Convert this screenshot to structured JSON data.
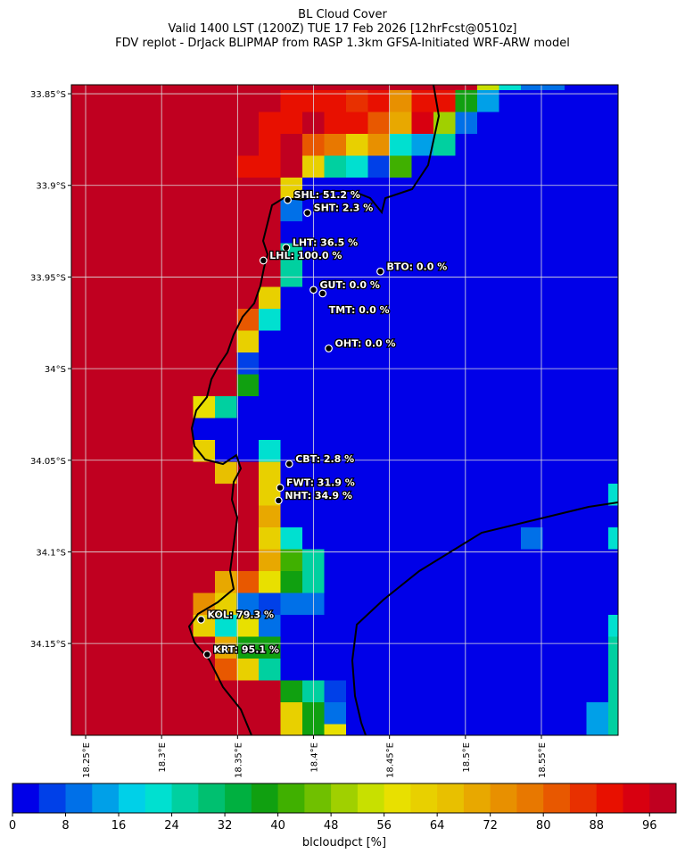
{
  "title_lines": [
    "BL Cloud Cover",
    "Valid 1400 LST (1200Z) TUE 17 Feb 2026 [12hrFcst@0510z]",
    "FDV replot - DrJack BLIPMAP from RASP 1.3km GFSA-Initiated WRF-ARW model"
  ],
  "map": {
    "xlim": [
      18.2406,
      18.6005
    ],
    "ylim": [
      -34.2001,
      -33.8451
    ],
    "xticks": [
      {
        "value": 18.25,
        "label": "18.25°E"
      },
      {
        "value": 18.3,
        "label": "18.3°E"
      },
      {
        "value": 18.35,
        "label": "18.35°E"
      },
      {
        "value": 18.4,
        "label": "18.4°E"
      },
      {
        "value": 18.45,
        "label": "18.45°E"
      },
      {
        "value": 18.5,
        "label": "18.5°E"
      },
      {
        "value": 18.55,
        "label": "18.55°E"
      }
    ],
    "yticks": [
      {
        "value": -33.85,
        "label": "33.85°S"
      },
      {
        "value": -33.9,
        "label": "33.9°S"
      },
      {
        "value": -33.95,
        "label": "33.95°S"
      },
      {
        "value": -34.0,
        "label": "34°S"
      },
      {
        "value": -34.05,
        "label": "34.05°S"
      },
      {
        "value": -34.1,
        "label": "34.1°S"
      },
      {
        "value": -34.15,
        "label": "34.15°S"
      }
    ],
    "grid": true,
    "cloud_grid": [
      [
        100,
        100,
        100,
        100,
        100,
        100,
        100,
        100,
        100,
        100,
        100,
        100,
        100,
        100,
        100,
        100,
        100,
        100,
        100,
        52,
        20,
        8,
        10,
        0,
        0,
        0
      ],
      [
        100,
        100,
        100,
        100,
        100,
        100,
        100,
        100,
        100,
        100,
        90,
        90,
        90,
        84,
        90,
        74,
        90,
        90,
        36,
        12,
        0,
        0,
        0,
        0,
        0,
        0
      ],
      [
        100,
        100,
        100,
        100,
        100,
        100,
        100,
        100,
        100,
        90,
        90,
        96,
        90,
        90,
        82,
        70,
        92,
        50,
        8,
        0,
        0,
        0,
        0,
        0,
        0,
        0
      ],
      [
        100,
        100,
        100,
        100,
        100,
        100,
        100,
        100,
        100,
        90,
        96,
        82,
        76,
        60,
        72,
        20,
        14,
        26,
        0,
        0,
        0,
        0,
        0,
        0,
        0,
        0
      ],
      [
        100,
        100,
        100,
        100,
        100,
        100,
        100,
        100,
        90,
        90,
        98,
        60,
        24,
        20,
        6,
        42,
        0,
        0,
        0,
        0,
        0,
        0,
        0,
        0,
        0,
        0
      ],
      [
        100,
        100,
        100,
        100,
        100,
        100,
        100,
        100,
        100,
        100,
        60,
        0,
        0,
        0,
        0,
        0,
        0,
        0,
        0,
        0,
        0,
        0,
        0,
        0,
        0,
        0
      ],
      [
        100,
        100,
        100,
        100,
        100,
        100,
        100,
        100,
        100,
        100,
        10,
        0,
        0,
        0,
        0,
        0,
        0,
        0,
        0,
        0,
        0,
        0,
        0,
        0,
        0,
        0
      ],
      [
        100,
        100,
        100,
        100,
        100,
        100,
        100,
        100,
        100,
        100,
        0,
        0,
        0,
        0,
        0,
        0,
        0,
        0,
        0,
        0,
        0,
        0,
        0,
        0,
        0,
        0
      ],
      [
        100,
        100,
        100,
        100,
        100,
        100,
        100,
        100,
        100,
        100,
        26,
        0,
        0,
        0,
        0,
        0,
        0,
        0,
        0,
        0,
        0,
        0,
        0,
        0,
        0,
        0
      ],
      [
        100,
        100,
        100,
        100,
        100,
        100,
        100,
        100,
        100,
        100,
        24,
        0,
        0,
        0,
        0,
        0,
        0,
        0,
        0,
        0,
        0,
        0,
        0,
        0,
        0,
        0
      ],
      [
        100,
        100,
        100,
        100,
        100,
        100,
        100,
        100,
        100,
        60,
        0,
        0,
        0,
        0,
        0,
        0,
        0,
        0,
        0,
        0,
        0,
        0,
        0,
        0,
        0,
        0
      ],
      [
        100,
        100,
        100,
        100,
        100,
        100,
        100,
        100,
        82,
        20,
        0,
        0,
        0,
        0,
        0,
        0,
        0,
        0,
        0,
        0,
        0,
        0,
        0,
        0,
        0,
        0
      ],
      [
        100,
        100,
        100,
        100,
        100,
        100,
        100,
        100,
        62,
        0,
        0,
        0,
        0,
        0,
        0,
        0,
        0,
        0,
        0,
        0,
        0,
        0,
        0,
        0,
        0,
        0
      ],
      [
        100,
        100,
        100,
        100,
        100,
        100,
        100,
        100,
        4,
        0,
        0,
        0,
        0,
        0,
        0,
        0,
        0,
        0,
        0,
        0,
        0,
        0,
        0,
        0,
        0,
        0
      ],
      [
        100,
        100,
        100,
        100,
        100,
        100,
        100,
        100,
        38,
        0,
        0,
        0,
        0,
        0,
        0,
        0,
        0,
        0,
        0,
        0,
        0,
        0,
        0,
        0,
        0,
        0
      ],
      [
        100,
        100,
        100,
        100,
        100,
        100,
        58,
        24,
        0,
        0,
        0,
        0,
        0,
        0,
        0,
        0,
        0,
        0,
        0,
        0,
        0,
        0,
        0,
        0,
        0,
        0
      ],
      [
        100,
        100,
        100,
        100,
        100,
        100,
        0,
        0,
        0,
        0,
        0,
        0,
        0,
        0,
        0,
        0,
        0,
        0,
        0,
        0,
        0,
        0,
        0,
        0,
        0,
        0
      ],
      [
        100,
        100,
        100,
        100,
        100,
        100,
        62,
        0,
        0,
        20,
        0,
        0,
        0,
        0,
        0,
        0,
        0,
        0,
        0,
        0,
        0,
        0,
        0,
        0,
        0,
        0
      ],
      [
        100,
        100,
        100,
        100,
        100,
        100,
        100,
        64,
        100,
        60,
        0,
        0,
        0,
        0,
        0,
        0,
        0,
        0,
        0,
        0,
        0,
        0,
        0,
        0,
        0,
        0
      ],
      [
        100,
        100,
        100,
        100,
        100,
        100,
        100,
        100,
        100,
        60,
        0,
        0,
        0,
        0,
        0,
        0,
        0,
        0,
        0,
        0,
        0,
        0,
        0,
        0,
        0,
        20
      ],
      [
        100,
        100,
        100,
        100,
        100,
        100,
        100,
        100,
        100,
        68,
        0,
        0,
        0,
        0,
        0,
        0,
        0,
        0,
        0,
        0,
        0,
        0,
        0,
        0,
        0,
        0
      ],
      [
        100,
        100,
        100,
        100,
        100,
        100,
        100,
        100,
        100,
        62,
        20,
        0,
        0,
        0,
        0,
        0,
        0,
        0,
        0,
        0,
        0,
        8,
        0,
        0,
        0,
        20
      ],
      [
        100,
        100,
        100,
        100,
        100,
        100,
        100,
        100,
        100,
        70,
        40,
        24,
        0,
        0,
        0,
        0,
        0,
        0,
        0,
        0,
        0,
        0,
        0,
        0,
        0,
        0
      ],
      [
        100,
        100,
        100,
        100,
        100,
        100,
        100,
        70,
        82,
        58,
        36,
        24,
        0,
        0,
        0,
        0,
        0,
        0,
        0,
        0,
        0,
        0,
        0,
        0,
        0,
        0
      ],
      [
        100,
        100,
        100,
        100,
        100,
        100,
        72,
        60,
        8,
        6,
        8,
        10,
        0,
        0,
        0,
        0,
        0,
        0,
        0,
        0,
        0,
        0,
        0,
        0,
        0,
        0
      ],
      [
        100,
        100,
        100,
        100,
        100,
        100,
        62,
        20,
        58,
        8,
        0,
        0,
        0,
        0,
        0,
        0,
        0,
        0,
        0,
        0,
        0,
        0,
        0,
        0,
        0,
        22
      ],
      [
        100,
        100,
        100,
        100,
        100,
        100,
        100,
        68,
        36,
        38,
        0,
        0,
        0,
        0,
        0,
        0,
        0,
        0,
        0,
        0,
        0,
        0,
        0,
        0,
        0,
        24
      ],
      [
        100,
        100,
        100,
        100,
        100,
        100,
        100,
        82,
        60,
        26,
        0,
        0,
        0,
        0,
        0,
        0,
        0,
        0,
        0,
        0,
        0,
        0,
        0,
        0,
        0,
        24
      ],
      [
        100,
        100,
        100,
        100,
        100,
        100,
        100,
        100,
        100,
        100,
        38,
        24,
        6,
        0,
        0,
        0,
        0,
        0,
        0,
        0,
        0,
        0,
        0,
        0,
        0,
        24
      ],
      [
        100,
        100,
        100,
        100,
        100,
        100,
        100,
        100,
        100,
        100,
        60,
        36,
        10,
        0,
        0,
        0,
        0,
        0,
        0,
        0,
        0,
        0,
        0,
        0,
        14,
        24
      ],
      [
        100,
        100,
        100,
        100,
        100,
        100,
        100,
        100,
        100,
        100,
        60,
        38,
        56,
        0,
        0,
        0,
        0,
        0,
        0,
        0,
        0,
        0,
        0,
        0,
        14,
        26
      ]
    ],
    "stations": [
      {
        "label": "SHL: 51.2 %",
        "lon": 18.383,
        "lat": -33.908
      },
      {
        "label": "SHT: 2.3 %",
        "lon": 18.396,
        "lat": -33.915
      },
      {
        "label": "LHT: 36.5 %",
        "lon": 18.382,
        "lat": -33.934
      },
      {
        "label": "LHL: 100.0 %",
        "lon": 18.367,
        "lat": -33.941
      },
      {
        "label": "BTO: 0.0 %",
        "lon": 18.444,
        "lat": -33.947
      },
      {
        "label": "GUT: 0.0 %",
        "lon": 18.4,
        "lat": -33.957
      },
      {
        "label": "TMT: 0.0 %",
        "lon": 18.406,
        "lat": -33.959
      },
      {
        "label": "OHT: 0.0 %",
        "lon": 18.41,
        "lat": -33.989
      },
      {
        "label": "CBT: 2.8 %",
        "lon": 18.384,
        "lat": -34.052
      },
      {
        "label": "FWT: 31.9 %",
        "lon": 18.378,
        "lat": -34.065
      },
      {
        "label": "NHT: 34.9 %",
        "lon": 18.377,
        "lat": -34.072
      },
      {
        "label": "KOL: 79.3 %",
        "lon": 18.326,
        "lat": -34.137
      },
      {
        "label": "KRT: 95.1 %",
        "lon": 18.33,
        "lat": -34.156
      }
    ]
  },
  "colorbar": {
    "label": "blcloudpct [%]",
    "lim": [
      0,
      100
    ],
    "ticks": [
      0,
      8,
      16,
      24,
      32,
      40,
      48,
      56,
      64,
      72,
      80,
      88,
      96
    ],
    "colors": [
      "#0000e8",
      "#0040e8",
      "#0070e8",
      "#00a0e8",
      "#00d0e8",
      "#00e0d0",
      "#00d0a0",
      "#00c070",
      "#00b040",
      "#10a010",
      "#40b000",
      "#70c000",
      "#a0d000",
      "#c8e000",
      "#e8e000",
      "#e8d000",
      "#e8c000",
      "#e8a800",
      "#e89000",
      "#e87800",
      "#e85800",
      "#e83000",
      "#e81000",
      "#d80010",
      "#c00020"
    ]
  }
}
